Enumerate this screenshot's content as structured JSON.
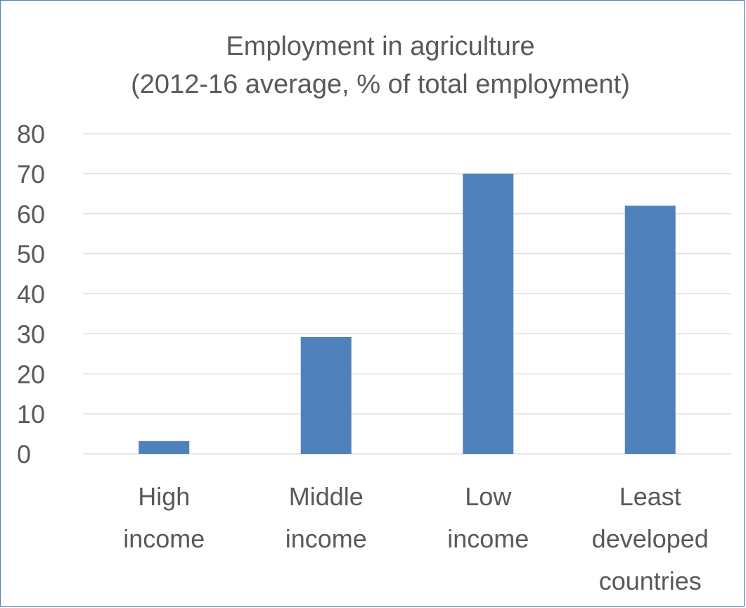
{
  "chart_data": {
    "type": "bar",
    "title_lines": [
      "Employment in agriculture",
      "(2012-16 average, % of total employment)"
    ],
    "categories": [
      [
        "High",
        "income"
      ],
      [
        "Middle",
        "income"
      ],
      [
        "Low",
        "income"
      ],
      [
        "Least",
        "developed",
        "countries"
      ]
    ],
    "values": [
      3.2,
      29.2,
      70,
      62
    ],
    "ylim": [
      0,
      80
    ],
    "yticks": [
      0,
      10,
      20,
      30,
      40,
      50,
      60,
      70,
      80
    ],
    "grid": true,
    "bar_color": "#4f81bd",
    "grid_color": "#d9d9d9",
    "text_color": "#595959"
  }
}
